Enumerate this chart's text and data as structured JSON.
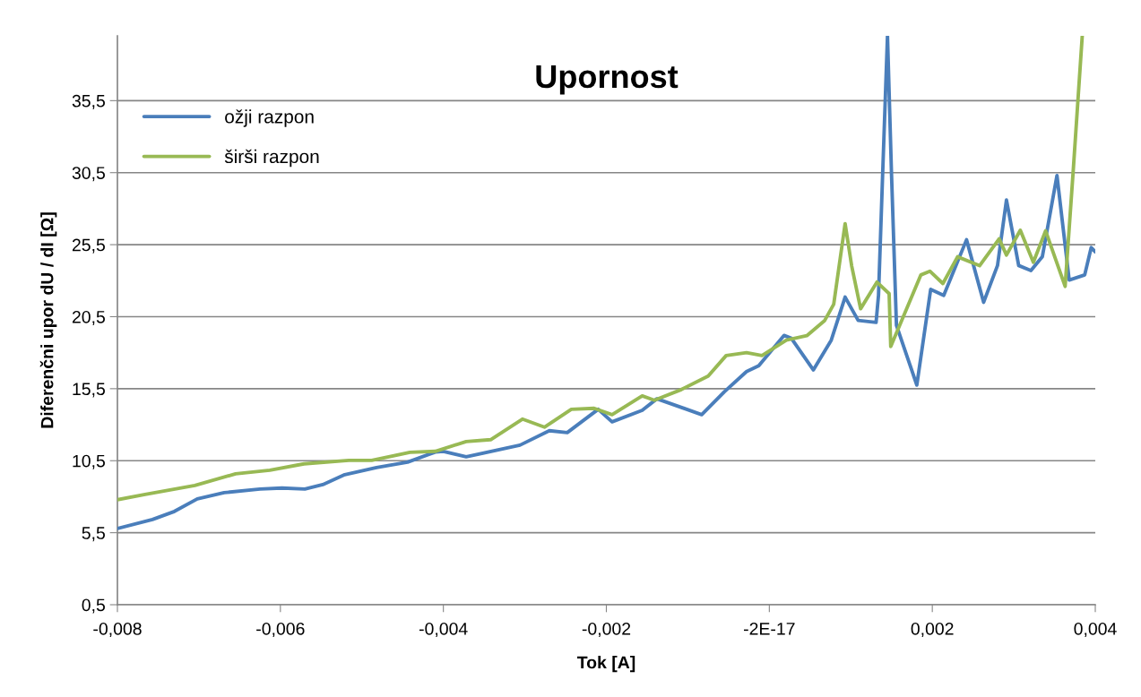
{
  "chart_data": {
    "type": "line",
    "title": "Upornost",
    "xlabel": "Tok [A]",
    "ylabel": "Diferenčni upor dU / dI [Ω]",
    "xlim": [
      -0.008,
      0.004
    ],
    "ylim": [
      0.5,
      40
    ],
    "xticks": [
      {
        "value": -0.008,
        "label": "-0,008"
      },
      {
        "value": -0.006,
        "label": "-0,006"
      },
      {
        "value": -0.004,
        "label": "-0,004"
      },
      {
        "value": -0.002,
        "label": "-0,002"
      },
      {
        "value": 0,
        "label": "-2E-17"
      },
      {
        "value": 0.002,
        "label": "0,002"
      },
      {
        "value": 0.004,
        "label": "0,004"
      }
    ],
    "yticks": [
      {
        "value": 0.5,
        "label": "0,5"
      },
      {
        "value": 5.5,
        "label": "5,5"
      },
      {
        "value": 10.5,
        "label": "10,5"
      },
      {
        "value": 15.5,
        "label": "15,5"
      },
      {
        "value": 20.5,
        "label": "20,5"
      },
      {
        "value": 25.5,
        "label": "25,5"
      },
      {
        "value": 30.5,
        "label": "30,5"
      },
      {
        "value": 35.5,
        "label": "35,5"
      }
    ],
    "grid": "y",
    "legend": "top left",
    "marker": "none",
    "line_style": "solid",
    "series": [
      {
        "name": "ožji razpon",
        "color": "#4a7ebb",
        "x": [
          -0.008,
          -0.00757,
          -0.0073,
          -0.00702,
          -0.00669,
          -0.00625,
          -0.00598,
          -0.0057,
          -0.00548,
          -0.00521,
          -0.00482,
          -0.00444,
          -0.0041,
          -0.004,
          -0.00372,
          -0.00306,
          -0.0027,
          -0.00248,
          -0.0021,
          -0.00193,
          -0.00156,
          -0.00138,
          -0.00083,
          -0.00055,
          -0.00028,
          -0.00013,
          0.00018,
          0.00027,
          0.00054,
          0.00076,
          0.00093,
          0.00109,
          0.00131,
          0.00134,
          0.00139,
          0.00145,
          0.0015,
          0.00156,
          0.00181,
          0.00198,
          0.00214,
          0.00242,
          0.00263,
          0.0028,
          0.00291,
          0.00306,
          0.00321,
          0.00335,
          0.00353,
          0.00368,
          0.00387,
          0.00395,
          0.004
        ],
        "values": [
          5.79,
          6.42,
          6.98,
          7.85,
          8.28,
          8.53,
          8.6,
          8.53,
          8.84,
          9.53,
          10.03,
          10.4,
          11.1,
          11.15,
          10.77,
          11.58,
          12.58,
          12.45,
          14.07,
          13.2,
          14.0,
          14.8,
          13.7,
          15.3,
          16.69,
          17.1,
          19.2,
          19.0,
          16.8,
          18.87,
          21.86,
          20.24,
          20.1,
          22.0,
          30.3,
          40,
          30.3,
          19.9,
          15.75,
          22.4,
          21.98,
          25.84,
          21.5,
          24.05,
          28.6,
          24.05,
          23.7,
          24.66,
          30.3,
          23.04,
          23.4,
          25.3,
          25.0
        ]
      },
      {
        "name": "širši razpon",
        "color": "#98b954",
        "x": [
          -0.008,
          -0.00766,
          -0.00705,
          -0.00655,
          -0.00613,
          -0.00571,
          -0.00516,
          -0.00488,
          -0.00441,
          -0.0041,
          -0.00372,
          -0.00342,
          -0.00303,
          -0.00276,
          -0.00243,
          -0.00215,
          -0.00193,
          -0.00156,
          -0.00141,
          -0.00108,
          -0.00075,
          -0.00053,
          -0.00028,
          -9e-05,
          0.00021,
          0.00046,
          0.00068,
          0.00079,
          0.00093,
          0.00101,
          0.00112,
          0.00132,
          0.00147,
          0.00149,
          0.00186,
          0.00197,
          0.00213,
          0.00231,
          0.00258,
          0.00282,
          0.00291,
          0.00308,
          0.00324,
          0.00339,
          0.00363,
          0.00373,
          0.00384
        ],
        "values": [
          7.79,
          8.16,
          8.78,
          9.59,
          9.84,
          10.28,
          10.52,
          10.52,
          11.08,
          11.15,
          11.83,
          11.96,
          13.39,
          12.83,
          14.07,
          14.14,
          13.7,
          15.0,
          14.7,
          15.44,
          16.38,
          17.8,
          18.0,
          17.8,
          18.87,
          19.18,
          20.24,
          21.36,
          26.96,
          24.04,
          21.05,
          22.9,
          22.1,
          18.43,
          23.4,
          23.66,
          22.8,
          24.66,
          24.04,
          25.9,
          24.78,
          26.5,
          24.28,
          26.46,
          22.6,
          30.7,
          40
        ]
      }
    ]
  }
}
